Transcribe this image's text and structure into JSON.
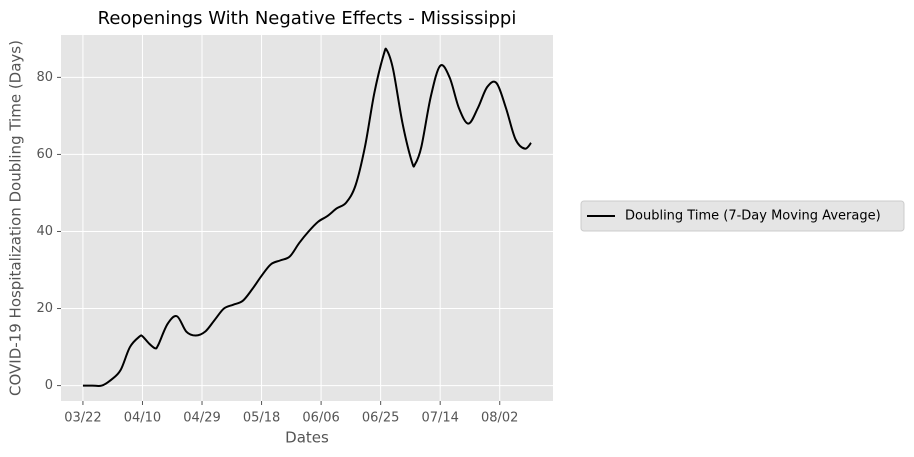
{
  "chart_data": {
    "type": "line",
    "title": "Reopenings With Negative Effects - Mississippi",
    "x_label": "Dates",
    "y_label": "COVID-19 Hospitalization Doubling Time (Days)",
    "x": [
      "03/22",
      "03/25",
      "03/28",
      "03/31",
      "04/03",
      "04/06",
      "04/09",
      "04/10",
      "04/12",
      "04/14",
      "04/15",
      "04/18",
      "04/21",
      "04/24",
      "04/27",
      "04/30",
      "05/03",
      "05/06",
      "05/09",
      "05/12",
      "05/15",
      "05/18",
      "05/21",
      "05/24",
      "05/27",
      "05/30",
      "06/02",
      "06/05",
      "06/08",
      "06/11",
      "06/14",
      "06/17",
      "06/20",
      "06/23",
      "06/26",
      "06/27",
      "06/29",
      "07/02",
      "07/05",
      "07/06",
      "07/08",
      "07/11",
      "07/14",
      "07/17",
      "07/20",
      "07/23",
      "07/26",
      "07/29",
      "08/01",
      "08/04",
      "08/07",
      "08/10",
      "08/12"
    ],
    "series": [
      {
        "name": "Doubling Time (7-Day Moving Average)",
        "color": "#000000",
        "values": [
          0,
          0,
          0,
          1.5,
          4,
          10,
          12.7,
          12.8,
          11,
          9.7,
          10.5,
          16,
          18,
          14,
          13,
          14,
          17,
          20,
          21,
          22,
          25,
          28.5,
          31.5,
          32.5,
          33.5,
          37,
          40,
          42.5,
          44,
          46,
          47.5,
          52,
          62,
          76,
          86,
          87,
          82,
          68,
          58,
          57.5,
          62,
          75,
          83,
          80,
          72,
          68,
          72,
          77.5,
          78.5,
          72,
          64,
          61.5,
          63
        ]
      }
    ],
    "xlim": [
      "03/15",
      "08/19"
    ],
    "xticks": [
      "03/22",
      "04/10",
      "04/29",
      "05/18",
      "06/06",
      "06/25",
      "07/14",
      "08/02"
    ],
    "ylim": [
      -4,
      91
    ],
    "yticks": [
      0,
      20,
      40,
      60,
      80
    ],
    "grid": true,
    "legend": "outside-right"
  }
}
